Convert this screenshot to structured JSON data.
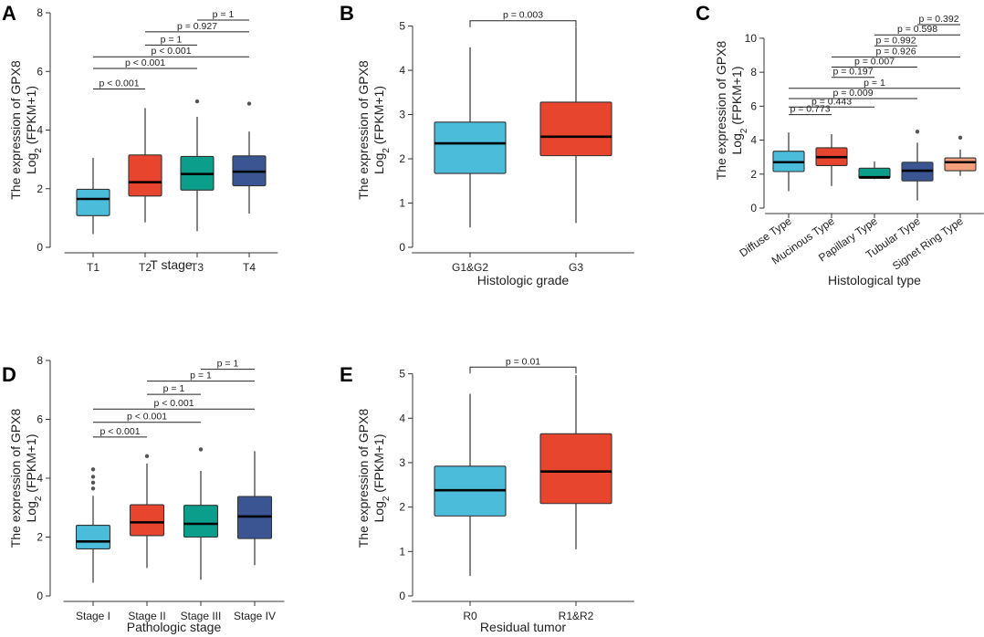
{
  "chart_data": [
    {
      "panel": "A",
      "type": "box",
      "ylabel_line1": "The expression of GPX8",
      "ylabel_line2_base": "Log",
      "ylabel_line2_sub": "2",
      "ylabel_line2_rest": " (FPKM+1)",
      "xlabel": "T stage",
      "ylim": [
        0,
        8
      ],
      "yticks": [
        0,
        2,
        4,
        6,
        8
      ],
      "categories": [
        "T1",
        "T2",
        "T3",
        "T4"
      ],
      "colors": [
        "#4bbcd9",
        "#e8452f",
        "#0b9e8a",
        "#3a5592"
      ],
      "boxes": [
        {
          "min": 0.45,
          "q1": 1.08,
          "median": 1.65,
          "q3": 1.98,
          "max": 3.05,
          "outliers": []
        },
        {
          "min": 0.85,
          "q1": 1.75,
          "median": 2.22,
          "q3": 3.15,
          "max": 4.75,
          "outliers": []
        },
        {
          "min": 0.55,
          "q1": 1.95,
          "median": 2.5,
          "q3": 3.1,
          "max": 4.45,
          "outliers": [
            4.98
          ]
        },
        {
          "min": 1.15,
          "q1": 2.1,
          "median": 2.58,
          "q3": 3.12,
          "max": 3.95,
          "outliers": [
            4.9
          ]
        }
      ],
      "comparisons": [
        {
          "from": 0,
          "to": 1,
          "y": 5.4,
          "label": "p < 0.001"
        },
        {
          "from": 0,
          "to": 2,
          "y": 6.1,
          "label": "p < 0.001"
        },
        {
          "from": 0,
          "to": 3,
          "y": 6.5,
          "label": "p < 0.001"
        },
        {
          "from": 1,
          "to": 2,
          "y": 6.9,
          "label": "p = 1"
        },
        {
          "from": 1,
          "to": 3,
          "y": 7.35,
          "label": "p = 0.927"
        },
        {
          "from": 2,
          "to": 3,
          "y": 7.75,
          "label": "p = 1"
        }
      ]
    },
    {
      "panel": "B",
      "type": "box",
      "ylabel_line1": "The expression of GPX8",
      "ylabel_line2_base": "Log",
      "ylabel_line2_sub": "2",
      "ylabel_line2_rest": " (FPKM+1)",
      "xlabel": "Histologic grade",
      "ylim": [
        0,
        5.3
      ],
      "yticks": [
        0,
        1,
        2,
        3,
        4,
        5
      ],
      "categories": [
        "G1&G2",
        "G3"
      ],
      "colors": [
        "#4bbcd9",
        "#e8452f"
      ],
      "boxes": [
        {
          "min": 0.45,
          "q1": 1.67,
          "median": 2.35,
          "q3": 2.83,
          "max": 4.52,
          "outliers": []
        },
        {
          "min": 0.55,
          "q1": 2.07,
          "median": 2.5,
          "q3": 3.28,
          "max": 4.97,
          "outliers": []
        }
      ],
      "comparisons": [
        {
          "from": 0,
          "to": 1,
          "y": 5.12,
          "label": "p = 0.003"
        }
      ]
    },
    {
      "panel": "C",
      "type": "box",
      "ylabel_line1": "The expression of GPX8",
      "ylabel_line2_base": "Log",
      "ylabel_line2_sub": "2",
      "ylabel_line2_rest": " (FPKM+1)",
      "xlabel": "Histological type",
      "ylim": [
        0,
        11.5
      ],
      "yticks": [
        0,
        2,
        4,
        6,
        8,
        10
      ],
      "categories": [
        "Diffuse Type",
        "Mucinous Type",
        "Papillary Type",
        "Tubular Type",
        "Signet Ring Type"
      ],
      "colors": [
        "#4bbcd9",
        "#e8452f",
        "#0b9e8a",
        "#3a5592",
        "#f5a07a"
      ],
      "boxes": [
        {
          "min": 1.0,
          "q1": 2.15,
          "median": 2.7,
          "q3": 3.35,
          "max": 4.45,
          "outliers": []
        },
        {
          "min": 1.3,
          "q1": 2.5,
          "median": 3.0,
          "q3": 3.55,
          "max": 4.35,
          "outliers": []
        },
        {
          "min": 1.7,
          "q1": 1.75,
          "median": 1.82,
          "q3": 2.35,
          "max": 2.75,
          "outliers": []
        },
        {
          "min": 0.45,
          "q1": 1.6,
          "median": 2.2,
          "q3": 2.7,
          "max": 3.85,
          "outliers": [
            4.5
          ]
        },
        {
          "min": 1.9,
          "q1": 2.2,
          "median": 2.7,
          "q3": 2.95,
          "max": 3.45,
          "outliers": [
            4.15
          ]
        }
      ],
      "comparisons": [
        {
          "from": 0,
          "to": 1,
          "y": 5.5,
          "label": "p = 0.773"
        },
        {
          "from": 0,
          "to": 2,
          "y": 5.95,
          "label": "p = 0.443"
        },
        {
          "from": 0,
          "to": 3,
          "y": 6.45,
          "label": "p = 0.009"
        },
        {
          "from": 0,
          "to": 4,
          "y": 7.05,
          "label": "p = 1"
        },
        {
          "from": 1,
          "to": 2,
          "y": 7.7,
          "label": "p = 0.197"
        },
        {
          "from": 1,
          "to": 3,
          "y": 8.3,
          "label": "p = 0.007"
        },
        {
          "from": 1,
          "to": 4,
          "y": 8.9,
          "label": "p = 0.926"
        },
        {
          "from": 2,
          "to": 3,
          "y": 9.55,
          "label": "p = 0.992"
        },
        {
          "from": 2,
          "to": 4,
          "y": 10.2,
          "label": "p = 0.598"
        },
        {
          "from": 3,
          "to": 4,
          "y": 10.8,
          "label": "p = 0.392"
        }
      ]
    },
    {
      "panel": "D",
      "type": "box",
      "ylabel_line1": "The expression of GPX8",
      "ylabel_line2_base": "Log",
      "ylabel_line2_sub": "2",
      "ylabel_line2_rest": " (FPKM+1)",
      "xlabel": "Pathologic stage",
      "ylim": [
        0,
        8
      ],
      "yticks": [
        0,
        2,
        4,
        6,
        8
      ],
      "categories": [
        "Stage I",
        "Stage II",
        "Stage III",
        "Stage IV"
      ],
      "colors": [
        "#4bbcd9",
        "#e8452f",
        "#0b9e8a",
        "#3a5592"
      ],
      "boxes": [
        {
          "min": 0.45,
          "q1": 1.6,
          "median": 1.85,
          "q3": 2.4,
          "max": 3.4,
          "outliers": [
            3.65,
            3.85,
            4.05,
            4.3
          ]
        },
        {
          "min": 0.95,
          "q1": 2.05,
          "median": 2.5,
          "q3": 3.1,
          "max": 4.5,
          "outliers": [
            4.75
          ]
        },
        {
          "min": 0.55,
          "q1": 2.0,
          "median": 2.45,
          "q3": 3.08,
          "max": 4.25,
          "outliers": [
            4.98
          ]
        },
        {
          "min": 1.05,
          "q1": 1.95,
          "median": 2.7,
          "q3": 3.38,
          "max": 4.92,
          "outliers": []
        }
      ],
      "comparisons": [
        {
          "from": 0,
          "to": 1,
          "y": 5.4,
          "label": "p < 0.001"
        },
        {
          "from": 0,
          "to": 2,
          "y": 5.9,
          "label": "p < 0.001"
        },
        {
          "from": 0,
          "to": 3,
          "y": 6.35,
          "label": "p < 0.001"
        },
        {
          "from": 1,
          "to": 2,
          "y": 6.85,
          "label": "p = 1"
        },
        {
          "from": 1,
          "to": 3,
          "y": 7.3,
          "label": "p = 1"
        },
        {
          "from": 2,
          "to": 3,
          "y": 7.7,
          "label": "p = 1"
        }
      ]
    },
    {
      "panel": "E",
      "type": "box",
      "ylabel_line1": "The expression of GPX8",
      "ylabel_line2_base": "Log",
      "ylabel_line2_sub": "2",
      "ylabel_line2_rest": " (FPKM+1)",
      "xlabel": "Residual tumor",
      "ylim": [
        0,
        5.3
      ],
      "yticks": [
        0,
        1,
        2,
        3,
        4,
        5
      ],
      "categories": [
        "R0",
        "R1&R2"
      ],
      "colors": [
        "#4bbcd9",
        "#e8452f"
      ],
      "boxes": [
        {
          "min": 0.45,
          "q1": 1.8,
          "median": 2.38,
          "q3": 2.92,
          "max": 4.55,
          "outliers": []
        },
        {
          "min": 1.05,
          "q1": 2.08,
          "median": 2.8,
          "q3": 3.65,
          "max": 4.97,
          "outliers": []
        }
      ],
      "comparisons": [
        {
          "from": 0,
          "to": 1,
          "y": 5.15,
          "label": "p = 0.01"
        }
      ]
    }
  ]
}
